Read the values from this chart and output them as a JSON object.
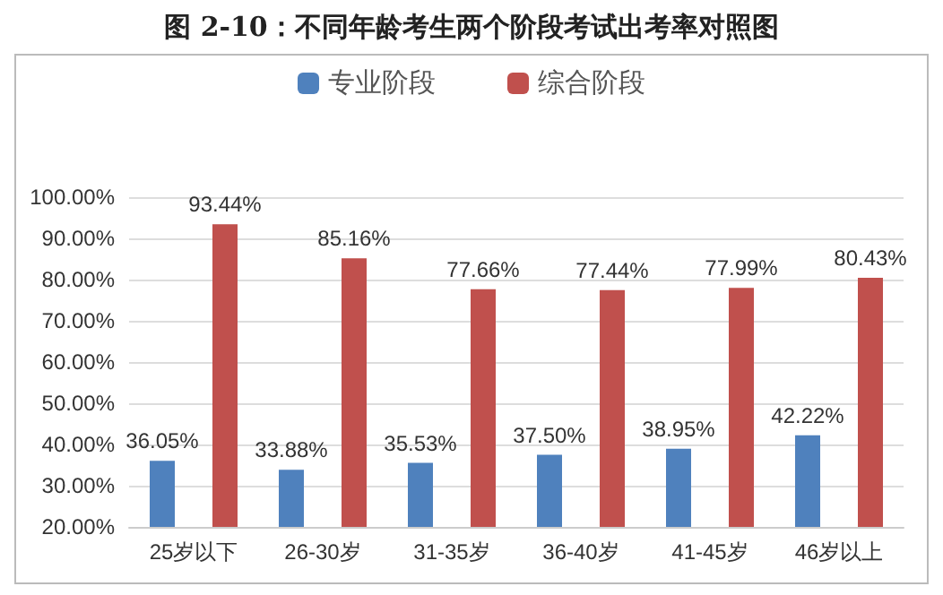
{
  "chart_data": {
    "type": "bar",
    "title": "图 2-10：不同年龄考生两个阶段考试出考率对照图",
    "categories": [
      "25岁以下",
      "26-30岁",
      "31-35岁",
      "36-40岁",
      "41-45岁",
      "46岁以上"
    ],
    "series": [
      {
        "name": "专业阶段",
        "color": "#4f81bd",
        "values": [
          36.05,
          33.88,
          35.53,
          37.5,
          38.95,
          42.22
        ],
        "value_labels": [
          "36.05%",
          "33.88%",
          "35.53%",
          "37.50%",
          "38.95%",
          "42.22%"
        ]
      },
      {
        "name": "综合阶段",
        "color": "#c0504d",
        "values": [
          93.44,
          85.16,
          77.66,
          77.44,
          77.99,
          80.43
        ],
        "value_labels": [
          "93.44%",
          "85.16%",
          "77.66%",
          "77.44%",
          "77.99%",
          "80.43%"
        ]
      }
    ],
    "ylim": [
      20,
      100
    ],
    "yticks": [
      {
        "value": 20,
        "label": "20.00%"
      },
      {
        "value": 30,
        "label": "30.00%"
      },
      {
        "value": 40,
        "label": "40.00%"
      },
      {
        "value": 50,
        "label": "50.00%"
      },
      {
        "value": 60,
        "label": "60.00%"
      },
      {
        "value": 70,
        "label": "70.00%"
      },
      {
        "value": 80,
        "label": "80.00%"
      },
      {
        "value": 90,
        "label": "90.00%"
      },
      {
        "value": 100,
        "label": "100.00%"
      }
    ],
    "grid": "y",
    "legend": "top"
  }
}
